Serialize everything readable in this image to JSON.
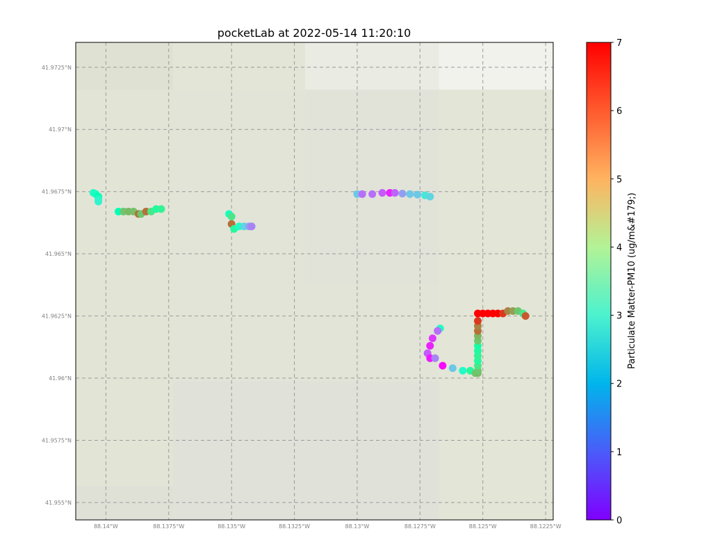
{
  "title": "pocketLab at 2022-05-14 11:20:10",
  "colorbar": {
    "label": "Particulate Matter-PM10 (ug/m&#179;)",
    "min": 0,
    "max": 7,
    "ticks": [
      "0",
      "1",
      "2",
      "3",
      "4",
      "5",
      "6",
      "7"
    ],
    "colormap": "rainbow"
  },
  "chart_data": {
    "type": "scatter",
    "title": "pocketLab at 2022-05-14 11:20:10",
    "xlim": [
      -88.1412,
      -88.1222
    ],
    "ylim": [
      41.9543,
      41.9735
    ],
    "x_ticks": [
      "88.14°W",
      "88.1375°W",
      "88.135°W",
      "88.1325°W",
      "88.13°W",
      "88.1275°W",
      "88.125°W",
      "88.1225°W"
    ],
    "y_ticks": [
      "41.955°N",
      "41.9575°N",
      "41.96°N",
      "41.9625°N",
      "41.965°N",
      "41.9675°N",
      "41.97°N",
      "41.9725°N"
    ],
    "grid": true,
    "color_variable": "Particulate Matter-PM10 (ug/m&#179;)",
    "segments": [
      {
        "lon": [
          -88.1405,
          -88.1404,
          -88.1403,
          -88.1403,
          -88.1403
        ],
        "lat": [
          41.96745,
          41.9674,
          41.9673,
          41.9672,
          41.9671
        ],
        "pm": [
          3.0,
          3.2,
          3.5,
          3.0,
          2.8
        ]
      },
      {
        "lon": [
          -88.1395,
          -88.1393,
          -88.1391,
          -88.1389,
          -88.1387,
          -88.1386,
          -88.1384,
          -88.1382,
          -88.138,
          -88.1378
        ],
        "lat": [
          41.9667,
          41.9667,
          41.9667,
          41.9667,
          41.9666,
          41.9666,
          41.9667,
          41.9667,
          41.9668,
          41.9668
        ],
        "pm": [
          3.5,
          5.0,
          5.2,
          5.1,
          6.0,
          5.0,
          6.0,
          4.5,
          4.0,
          4.2
        ]
      },
      {
        "lon": [
          -88.1351,
          -88.135,
          -88.135,
          -88.1349,
          -88.1347,
          -88.1345,
          -88.1343,
          -88.1342
        ],
        "lat": [
          41.9666,
          41.9665,
          41.9662,
          41.966,
          41.9661,
          41.9661,
          41.9661,
          41.9661
        ],
        "pm": [
          3.2,
          4.5,
          6.0,
          4.0,
          3.0,
          2.2,
          1.5,
          1.2
        ]
      },
      {
        "lon": [
          -88.13,
          -88.1298,
          -88.1294,
          -88.129,
          -88.1287,
          -88.1285,
          -88.1282,
          -88.1279,
          -88.1276,
          -88.1273,
          -88.1271
        ],
        "lat": [
          41.9674,
          41.9674,
          41.9674,
          41.96745,
          41.96745,
          41.96745,
          41.96742,
          41.9674,
          41.96738,
          41.96735,
          41.9673
        ],
        "pm": [
          2.0,
          1.0,
          1.0,
          0.8,
          0.3,
          0.9,
          1.5,
          2.0,
          2.0,
          2.5,
          2.2
        ]
      },
      {
        "lon": [
          -88.1267,
          -88.1268,
          -88.127,
          -88.1271,
          -88.1272,
          -88.1271,
          -88.1269,
          -88.1266,
          -88.1262,
          -88.1258,
          -88.1255,
          -88.1253,
          -88.1252
        ],
        "lat": [
          41.962,
          41.9619,
          41.9616,
          41.9613,
          41.961,
          41.9608,
          41.9608,
          41.9605,
          41.9604,
          41.9603,
          41.9603,
          41.9602,
          41.9602
        ],
        "pm": [
          3.0,
          1.0,
          0.5,
          0.3,
          0.8,
          0.2,
          1.2,
          0.1,
          2.0,
          3.0,
          4.0,
          5.0,
          5.2
        ]
      },
      {
        "lon": [
          -88.1252,
          -88.1252,
          -88.1252,
          -88.1252,
          -88.1252,
          -88.1252,
          -88.1252,
          -88.1252,
          -88.1252,
          -88.1252,
          -88.1252
        ],
        "lat": [
          41.9603,
          41.9605,
          41.9607,
          41.9609,
          41.9611,
          41.9613,
          41.9615,
          41.9617,
          41.9619,
          41.9621,
          41.9623
        ],
        "pm": [
          5.0,
          4.5,
          4.0,
          4.2,
          4.0,
          3.8,
          5.0,
          5.2,
          6.0,
          5.8,
          6.5
        ]
      },
      {
        "lon": [
          -88.1252,
          -88.125,
          -88.1248,
          -88.1246,
          -88.1244,
          -88.1242,
          -88.124,
          -88.1238,
          -88.1236,
          -88.1234,
          -88.1233
        ],
        "lat": [
          41.9626,
          41.9626,
          41.9626,
          41.9626,
          41.9626,
          41.9626,
          41.9627,
          41.9627,
          41.9627,
          41.9626,
          41.9625
        ],
        "pm": [
          7.0,
          7.0,
          7.0,
          7.0,
          7.0,
          6.5,
          5.8,
          5.5,
          5.0,
          4.5,
          6.2
        ]
      }
    ]
  }
}
